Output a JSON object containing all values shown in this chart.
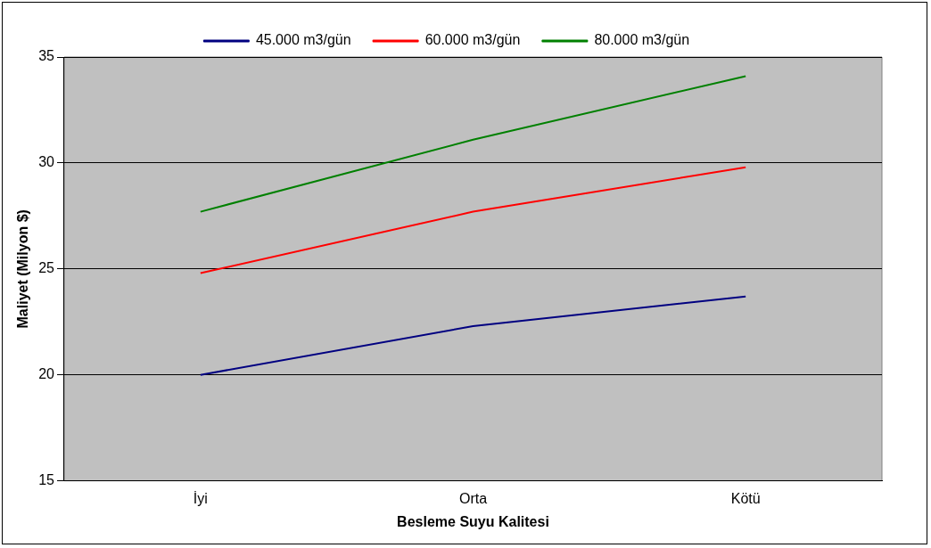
{
  "chart_data": {
    "type": "line",
    "xlabel": "Besleme Suyu Kalitesi",
    "ylabel": "Maliyet (Milyon $)",
    "categories": [
      "İyi",
      "Orta",
      "Kötü"
    ],
    "series": [
      {
        "name": "45.000 m3/gün",
        "color": "#000080",
        "values": [
          20.0,
          22.3,
          23.7
        ]
      },
      {
        "name": "60.000 m3/gün",
        "color": "#ff0000",
        "values": [
          24.8,
          27.7,
          29.8
        ]
      },
      {
        "name": "80.000 m3/gün",
        "color": "#008000",
        "values": [
          27.7,
          31.1,
          34.1
        ]
      }
    ],
    "ylim": [
      15,
      35
    ],
    "yticks": [
      15,
      20,
      25,
      30,
      35
    ],
    "grid": "y",
    "legend": "top",
    "marker": "none"
  }
}
